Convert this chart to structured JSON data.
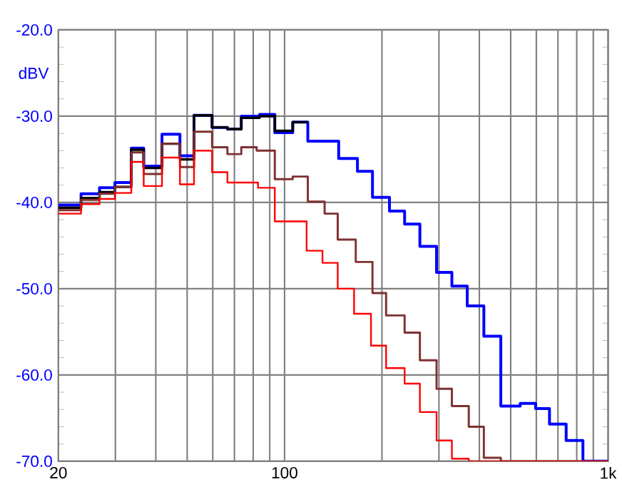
{
  "chart_data": {
    "type": "step",
    "ylabel": "dBV",
    "log": "x",
    "grid": true,
    "line_style": "solid",
    "xlim": [
      20,
      1000
    ],
    "ylim": [
      -70,
      -20
    ],
    "xticks": [
      {
        "value": 20,
        "label": "20"
      },
      {
        "value": 30,
        "label": null
      },
      {
        "value": 40,
        "label": null
      },
      {
        "value": 50,
        "label": null
      },
      {
        "value": 60,
        "label": null
      },
      {
        "value": 70,
        "label": null
      },
      {
        "value": 80,
        "label": null
      },
      {
        "value": 90,
        "label": null
      },
      {
        "value": 100,
        "label": "100"
      },
      {
        "value": 200,
        "label": null
      },
      {
        "value": 300,
        "label": null
      },
      {
        "value": 400,
        "label": null
      },
      {
        "value": 500,
        "label": null
      },
      {
        "value": 600,
        "label": null
      },
      {
        "value": 700,
        "label": null
      },
      {
        "value": 800,
        "label": null
      },
      {
        "value": 900,
        "label": null
      },
      {
        "value": 1000,
        "label": "1k"
      }
    ],
    "yticks": [
      {
        "value": -70,
        "label": "-70.0"
      },
      {
        "value": -60,
        "label": "-60.0"
      },
      {
        "value": -50,
        "label": "-50.0"
      },
      {
        "value": -40,
        "label": "-40.0"
      },
      {
        "value": -30,
        "label": "-30.0"
      },
      {
        "value": -20,
        "label": "-20.0"
      }
    ],
    "series": [
      {
        "color": "#0000ff",
        "x": [
          20,
          23.5,
          26.8,
          29.9,
          33.6,
          36.7,
          41.8,
          47.5,
          52.5,
          59.7,
          66.6,
          73.5,
          83.7,
          93.3,
          106,
          118,
          147,
          168,
          187,
          211,
          235,
          262,
          295,
          329,
          367,
          413,
          466,
          535,
          597,
          659,
          742,
          836,
          1000
        ],
        "values": [
          -40.3,
          -39.0,
          -38.3,
          -37.7,
          -33.7,
          -35.8,
          -32.1,
          -34.6,
          -29.9,
          -31.3,
          -31.5,
          -30.0,
          -29.8,
          -31.9,
          -30.7,
          -32.9,
          -34.9,
          -36.4,
          -39.4,
          -41.0,
          -42.5,
          -45.1,
          -48.1,
          -49.7,
          -52.0,
          -55.5,
          -63.6,
          -63.3,
          -63.9,
          -65.7,
          -67.6,
          -70,
          -70
        ]
      },
      {
        "color": "#000000",
        "x": [
          20,
          23.5,
          26.8,
          29.9,
          33.6,
          36.7,
          41.8,
          47.5,
          52.5,
          59.7,
          66.6,
          73.5,
          83.7,
          93.3,
          106,
          118
        ],
        "values": [
          -40.6,
          -39.5,
          -38.8,
          -38.2,
          -33.9,
          -36.0,
          -33.2,
          -35.0,
          -29.9,
          -31.3,
          -31.5,
          -30.2,
          -30.0,
          -31.7,
          -30.7,
          -30.7
        ]
      },
      {
        "color": "#803030",
        "x": [
          20,
          23.5,
          26.8,
          29.9,
          33.6,
          36.7,
          41.8,
          47.5,
          52.5,
          59.7,
          66.6,
          73.5,
          82,
          93.3,
          106,
          118,
          133,
          146,
          166,
          187,
          206,
          235,
          262,
          295,
          329,
          371,
          413,
          466,
          1000
        ],
        "values": [
          -40.9,
          -39.7,
          -39.0,
          -38.2,
          -34.2,
          -36.7,
          -33.2,
          -35.9,
          -31.8,
          -33.6,
          -34.4,
          -33.6,
          -34.0,
          -37.3,
          -37.0,
          -39.9,
          -41.3,
          -44.3,
          -46.9,
          -50.5,
          -53.1,
          -55.1,
          -58.3,
          -61.6,
          -63.6,
          -66.0,
          -69.6,
          -70,
          -70
        ]
      },
      {
        "color": "#ff0000",
        "x": [
          20,
          23.5,
          26.8,
          29.9,
          33.6,
          36.7,
          41.8,
          47.5,
          52.5,
          59.7,
          66.6,
          82.8,
          93.3,
          117,
          131,
          146,
          164,
          185,
          206,
          235,
          262,
          295,
          329,
          371,
          1000
        ],
        "values": [
          -41.3,
          -40.2,
          -39.6,
          -38.9,
          -35.3,
          -38.1,
          -34.8,
          -37.9,
          -34.0,
          -36.5,
          -37.7,
          -38.3,
          -42.2,
          -45.6,
          -47.0,
          -50.0,
          -52.9,
          -56.6,
          -59.2,
          -61.0,
          -64.3,
          -67.6,
          -69.7,
          -70,
          -70
        ]
      }
    ]
  }
}
